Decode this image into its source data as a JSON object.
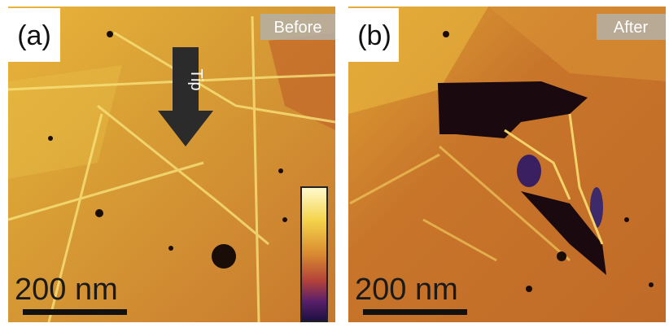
{
  "panels": [
    {
      "label": "(a)",
      "tag": "Before",
      "arrow_label": "Tip",
      "scale_bar": "200 nm"
    },
    {
      "label": "(b)",
      "tag": "After",
      "scale_bar": "200 nm"
    }
  ]
}
